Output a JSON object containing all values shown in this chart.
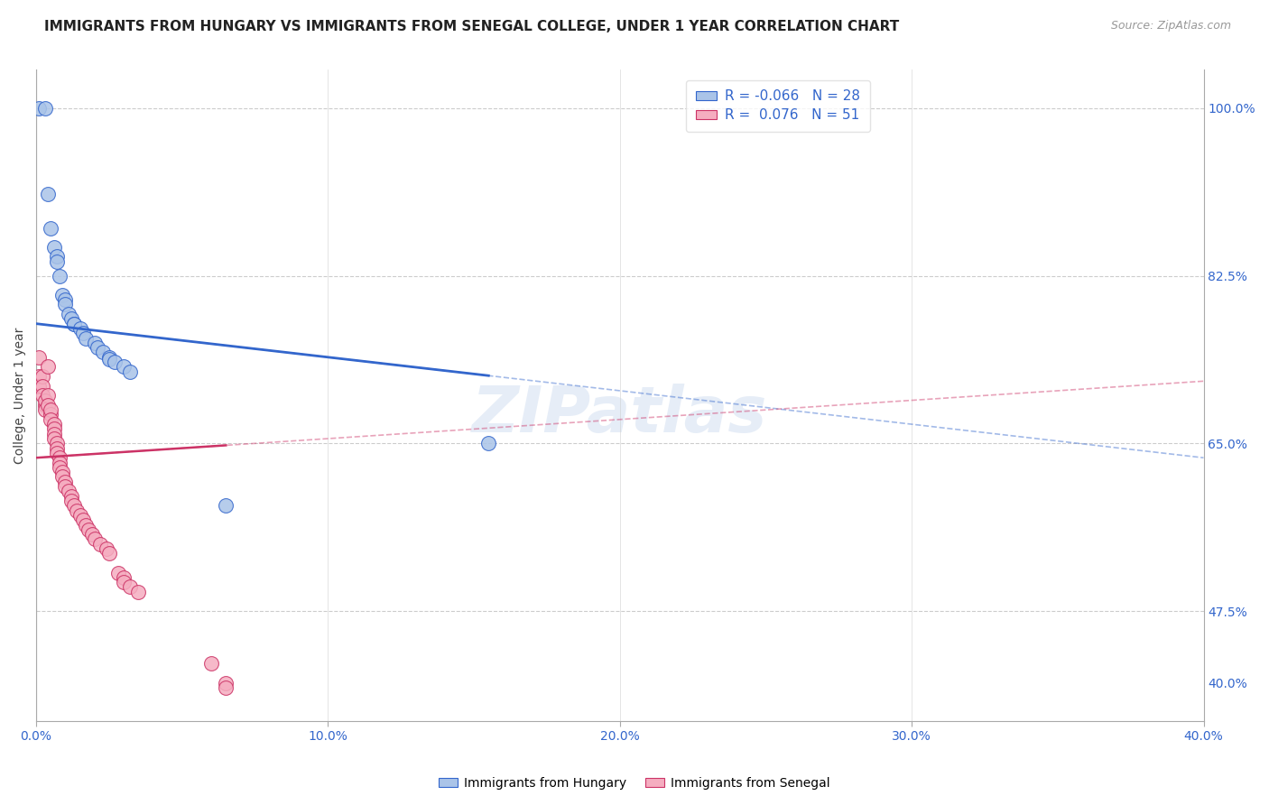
{
  "title": "IMMIGRANTS FROM HUNGARY VS IMMIGRANTS FROM SENEGAL COLLEGE, UNDER 1 YEAR CORRELATION CHART",
  "source": "Source: ZipAtlas.com",
  "xlabel_ticks": [
    "0.0%",
    "10.0%",
    "20.0%",
    "30.0%",
    "40.0%"
  ],
  "xlabel_tick_vals": [
    0.0,
    0.1,
    0.2,
    0.3,
    0.4
  ],
  "ylabel": "College, Under 1 year",
  "right_ytick_labels": [
    "100.0%",
    "82.5%",
    "65.0%",
    "47.5%",
    "40.0%"
  ],
  "right_ytick_vals": [
    1.0,
    0.825,
    0.65,
    0.475,
    0.4
  ],
  "xlim": [
    0.0,
    0.4
  ],
  "ylim": [
    0.36,
    1.04
  ],
  "hungary_R": -0.066,
  "hungary_N": 28,
  "senegal_R": 0.076,
  "senegal_N": 51,
  "hungary_color": "#aac4e8",
  "senegal_color": "#f5adc0",
  "hungary_line_color": "#3366cc",
  "senegal_line_color": "#cc3366",
  "background_color": "#ffffff",
  "grid_color": "#cccccc",
  "hungary_x": [
    0.001,
    0.003,
    0.004,
    0.005,
    0.006,
    0.007,
    0.007,
    0.008,
    0.009,
    0.01,
    0.01,
    0.011,
    0.012,
    0.013,
    0.013,
    0.015,
    0.016,
    0.017,
    0.02,
    0.021,
    0.023,
    0.025,
    0.025,
    0.027,
    0.03,
    0.032,
    0.065,
    0.155
  ],
  "hungary_y": [
    1.0,
    1.0,
    0.91,
    0.875,
    0.855,
    0.845,
    0.84,
    0.825,
    0.805,
    0.8,
    0.795,
    0.785,
    0.78,
    0.775,
    0.775,
    0.77,
    0.765,
    0.76,
    0.755,
    0.75,
    0.745,
    0.74,
    0.738,
    0.735,
    0.73,
    0.725,
    0.585,
    0.65
  ],
  "senegal_x": [
    0.001,
    0.001,
    0.001,
    0.002,
    0.002,
    0.002,
    0.003,
    0.003,
    0.003,
    0.004,
    0.004,
    0.004,
    0.005,
    0.005,
    0.005,
    0.006,
    0.006,
    0.006,
    0.006,
    0.007,
    0.007,
    0.007,
    0.008,
    0.008,
    0.008,
    0.009,
    0.009,
    0.01,
    0.01,
    0.011,
    0.012,
    0.012,
    0.013,
    0.014,
    0.015,
    0.016,
    0.017,
    0.018,
    0.019,
    0.02,
    0.022,
    0.024,
    0.025,
    0.028,
    0.03,
    0.03,
    0.032,
    0.035,
    0.06,
    0.065,
    0.065
  ],
  "senegal_y": [
    0.74,
    0.72,
    0.71,
    0.72,
    0.71,
    0.7,
    0.69,
    0.695,
    0.685,
    0.73,
    0.7,
    0.69,
    0.68,
    0.685,
    0.675,
    0.67,
    0.665,
    0.66,
    0.655,
    0.65,
    0.645,
    0.64,
    0.635,
    0.63,
    0.625,
    0.62,
    0.615,
    0.61,
    0.605,
    0.6,
    0.595,
    0.59,
    0.585,
    0.58,
    0.575,
    0.57,
    0.565,
    0.56,
    0.555,
    0.55,
    0.545,
    0.54,
    0.535,
    0.515,
    0.51,
    0.505,
    0.5,
    0.495,
    0.42,
    0.4,
    0.395
  ],
  "title_fontsize": 11,
  "label_fontsize": 10,
  "tick_fontsize": 10,
  "source_fontsize": 9,
  "hungary_line_intercept": 0.775,
  "hungary_line_slope": -0.35,
  "senegal_line_intercept": 0.635,
  "senegal_line_slope": 0.2
}
